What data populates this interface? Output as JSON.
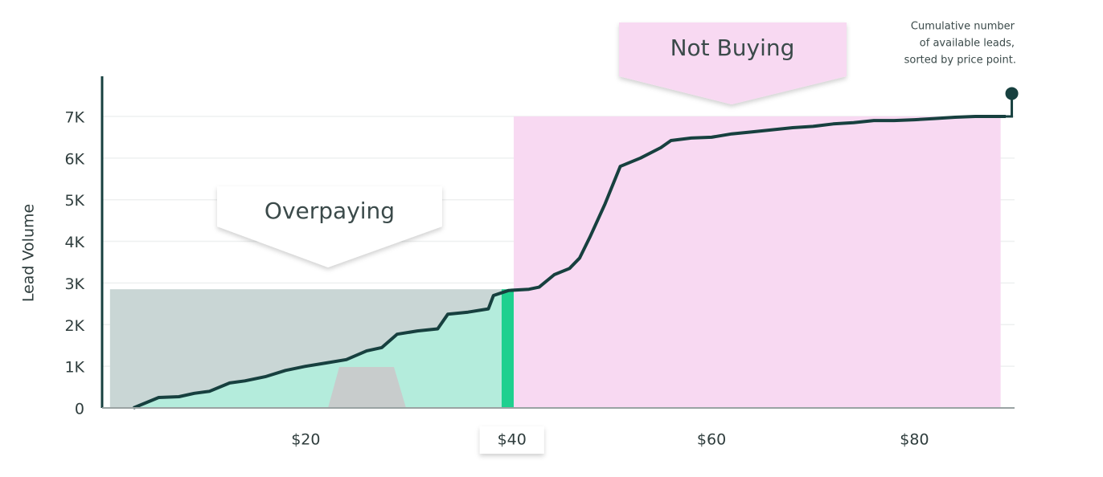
{
  "chart_data": {
    "type": "line",
    "y_label": "Lead Volume",
    "x": [
      3,
      5.5,
      7.5,
      9,
      10.5,
      12.5,
      14,
      16,
      18,
      20,
      22,
      24,
      26,
      27.5,
      29,
      31,
      33,
      34,
      36,
      38,
      38.5,
      40,
      42,
      43,
      44.5,
      46,
      47,
      48,
      49.5,
      51,
      53,
      55,
      56,
      58,
      60,
      62,
      64,
      66,
      68,
      70,
      72,
      74,
      76,
      78,
      80,
      82,
      84,
      86,
      89
    ],
    "values": [
      0,
      250,
      270,
      350,
      400,
      600,
      650,
      750,
      900,
      1000,
      1080,
      1160,
      1370,
      1450,
      1770,
      1850,
      1900,
      2250,
      2300,
      2380,
      2700,
      2820,
      2850,
      2900,
      3200,
      3350,
      3600,
      4100,
      4900,
      5800,
      6000,
      6250,
      6420,
      6480,
      6500,
      6580,
      6630,
      6680,
      6730,
      6760,
      6820,
      6850,
      6900,
      6900,
      6920,
      6950,
      6980,
      7000,
      7000
    ],
    "color": "#17403f",
    "end_marker": {
      "x": 89.6,
      "y": 7550
    },
    "xlim": [
      0,
      90
    ],
    "ylim": [
      0,
      8000
    ],
    "xticks": [
      {
        "value": 20,
        "label": "$20"
      },
      {
        "value": 40,
        "label": "$40"
      },
      {
        "value": 60,
        "label": "$60"
      },
      {
        "value": 80,
        "label": "$80"
      }
    ],
    "highlighted_xtick_index": 1,
    "yticks": [
      0,
      {
        "value": 1000,
        "label": "1K"
      },
      {
        "value": 2000,
        "label": "2K"
      },
      {
        "value": 3000,
        "label": "3K"
      },
      {
        "value": 4000,
        "label": "4K"
      },
      {
        "value": 5000,
        "label": "5K"
      },
      {
        "value": 6000,
        "label": "6K"
      },
      {
        "value": 7000,
        "label": "7K"
      }
    ],
    "grid": true,
    "bands": [
      {
        "x": [
          0.7,
          39.3
        ],
        "y_top": 2850,
        "color": "#c9d6d5"
      },
      {
        "x": [
          39.3,
          40.5
        ],
        "y_top": 2850,
        "color": "#1fd08f"
      },
      {
        "x": [
          40.5,
          88.5
        ],
        "y_top": 7000,
        "color": "#f8d9f2"
      }
    ],
    "fill_under_line": {
      "x": [
        3,
        39.3
      ],
      "color": "#b4ecdc"
    },
    "callouts": [
      "Overpaying",
      "Not Buying"
    ],
    "annotation": [
      "Cumulative number",
      "of available leads,",
      "sorted by price point."
    ]
  }
}
